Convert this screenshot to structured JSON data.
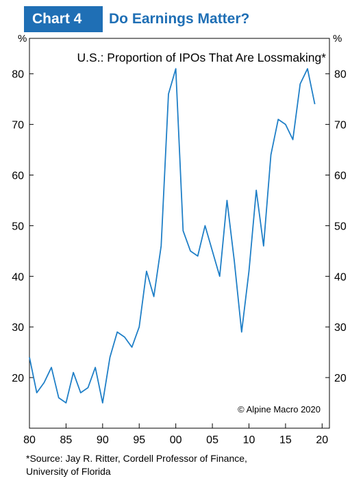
{
  "header": {
    "chart_label": "Chart 4",
    "title": "Do Earnings Matter?"
  },
  "chart_data": {
    "type": "line",
    "title": "U.S.: Proportion of IPOs That Are Lossmaking*",
    "ylabel_left": "%",
    "ylabel_right": "%",
    "x_tick_labels": [
      "80",
      "85",
      "90",
      "95",
      "00",
      "05",
      "10",
      "15",
      "20"
    ],
    "x_tick_values": [
      1980,
      1985,
      1990,
      1995,
      2000,
      2005,
      2010,
      2015,
      2020
    ],
    "y_tick_values": [
      20,
      30,
      40,
      50,
      60,
      70,
      80
    ],
    "xlim": [
      1980,
      2021
    ],
    "ylim": [
      10,
      87
    ],
    "line_color": "#1f7fc7",
    "series": [
      {
        "x": [
          1980,
          1981,
          1982,
          1983,
          1984,
          1985,
          1986,
          1987,
          1988,
          1989,
          1990,
          1991,
          1992,
          1993,
          1994,
          1995,
          1996,
          1997,
          1998,
          1999,
          2000,
          2001,
          2002,
          2003,
          2004,
          2005,
          2006,
          2007,
          2008,
          2009,
          2010,
          2011,
          2012,
          2013,
          2014,
          2015,
          2016,
          2017,
          2018,
          2019
        ],
        "values": [
          24,
          17,
          19,
          22,
          16,
          15,
          21,
          17,
          18,
          22,
          15,
          24,
          29,
          28,
          26,
          30,
          41,
          36,
          46,
          76,
          81,
          49,
          45,
          44,
          50,
          45,
          40,
          55,
          43,
          29,
          41,
          57,
          46,
          64,
          71,
          70,
          67,
          78,
          81,
          74
        ]
      }
    ],
    "annotation": "© Alpine Macro 2020",
    "grid": false
  },
  "footer": {
    "source_line1": "*Source: Jay R. Ritter, Cordell Professor of Finance,",
    "source_line2": "University of Florida"
  }
}
